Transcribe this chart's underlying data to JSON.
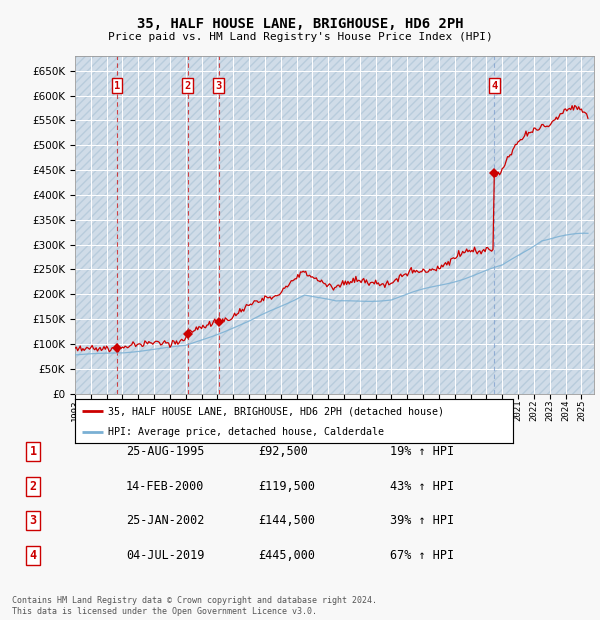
{
  "title": "35, HALF HOUSE LANE, BRIGHOUSE, HD6 2PH",
  "subtitle": "Price paid vs. HM Land Registry's House Price Index (HPI)",
  "ytick_values": [
    0,
    50000,
    100000,
    150000,
    200000,
    250000,
    300000,
    350000,
    400000,
    450000,
    500000,
    550000,
    600000,
    650000
  ],
  "xlim_start": 1993.0,
  "xlim_end": 2025.8,
  "ylim_bottom": 0,
  "ylim_top": 680000,
  "plot_bg_color": "#dde8f0",
  "hpi_line_color": "#7ab0d4",
  "sale_line_color": "#cc0000",
  "transactions": [
    {
      "label": 1,
      "date_str": "25-AUG-1995",
      "year": 1995.65,
      "price": 92500,
      "pct": "19%",
      "dir": "↑"
    },
    {
      "label": 2,
      "date_str": "14-FEB-2000",
      "year": 2000.12,
      "price": 119500,
      "pct": "43%",
      "dir": "↑"
    },
    {
      "label": 3,
      "date_str": "25-JAN-2002",
      "year": 2002.07,
      "price": 144500,
      "pct": "39%",
      "dir": "↑"
    },
    {
      "label": 4,
      "date_str": "04-JUL-2019",
      "year": 2019.5,
      "price": 445000,
      "pct": "67%",
      "dir": "↑"
    }
  ],
  "legend_line1": "35, HALF HOUSE LANE, BRIGHOUSE, HD6 2PH (detached house)",
  "legend_line2": "HPI: Average price, detached house, Calderdale",
  "footer1": "Contains HM Land Registry data © Crown copyright and database right 2024.",
  "footer2": "This data is licensed under the Open Government Licence v3.0.",
  "xtick_years": [
    1993,
    1994,
    1995,
    1996,
    1997,
    1998,
    1999,
    2000,
    2001,
    2002,
    2003,
    2004,
    2005,
    2006,
    2007,
    2008,
    2009,
    2010,
    2011,
    2012,
    2013,
    2014,
    2015,
    2016,
    2017,
    2018,
    2019,
    2020,
    2021,
    2022,
    2023,
    2024,
    2025
  ]
}
